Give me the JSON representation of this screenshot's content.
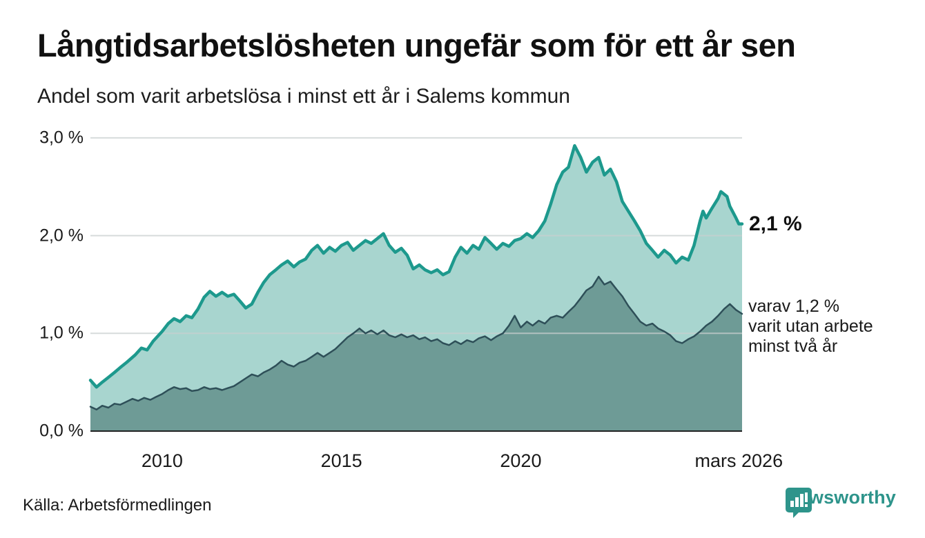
{
  "header": {
    "title": "Långtidsarbetslösheten ungefär som för ett år sen",
    "subtitle": "Andel som varit arbetslösa i minst ett år i Salems kommun"
  },
  "annotations": {
    "latest_value": "2,1 %",
    "secondary_line1": "varav 1,2 %",
    "secondary_line2": "varit utan arbete",
    "secondary_line3": "minst två år"
  },
  "footer": {
    "source": "Källa: Arbetsförmedlingen",
    "brand": "Newsworthy"
  },
  "colors": {
    "line_primary": "#1d998d",
    "fill_primary": "#a8d5cf",
    "line_secondary": "#2e4f58",
    "fill_secondary": "#6e9b96",
    "gridline": "#c9cfcf",
    "axis": "#222222",
    "brand_teal": "#2e948b",
    "text": "#111111"
  },
  "chart_data": {
    "type": "area",
    "title": "Långtidsarbetslösheten ungefär som för ett år sen",
    "subtitle": "Andel som varit arbetslösa i minst ett år i Salems kommun",
    "unit": "%",
    "grid": true,
    "x_start": 2008.0,
    "x_end": 2026.17,
    "ylim": [
      0,
      3.1
    ],
    "y_ticks": [
      {
        "v": 0,
        "label": "0,0 %"
      },
      {
        "v": 1,
        "label": "1,0 %"
      },
      {
        "v": 2,
        "label": "2,0 %"
      },
      {
        "v": 3,
        "label": "3,0 %"
      }
    ],
    "x_ticks": [
      {
        "x": 2010,
        "label": "2010"
      },
      {
        "x": 2015,
        "label": "2015"
      },
      {
        "x": 2020,
        "label": "2020"
      },
      {
        "x": 2026.08,
        "label": "mars 2026"
      }
    ],
    "latest": {
      "primary": 2.1,
      "secondary": 1.2,
      "x": 2026.17
    },
    "series": [
      {
        "name": "Andel arbetslösa minst ett år",
        "points": [
          [
            2008.0,
            0.52
          ],
          [
            2008.17,
            0.45
          ],
          [
            2008.33,
            0.5
          ],
          [
            2008.5,
            0.55
          ],
          [
            2008.67,
            0.6
          ],
          [
            2008.83,
            0.65
          ],
          [
            2009.0,
            0.7
          ],
          [
            2009.25,
            0.78
          ],
          [
            2009.42,
            0.85
          ],
          [
            2009.58,
            0.83
          ],
          [
            2009.75,
            0.92
          ],
          [
            2010.0,
            1.02
          ],
          [
            2010.17,
            1.1
          ],
          [
            2010.33,
            1.15
          ],
          [
            2010.5,
            1.12
          ],
          [
            2010.67,
            1.18
          ],
          [
            2010.83,
            1.16
          ],
          [
            2011.0,
            1.25
          ],
          [
            2011.17,
            1.37
          ],
          [
            2011.33,
            1.43
          ],
          [
            2011.5,
            1.38
          ],
          [
            2011.67,
            1.42
          ],
          [
            2011.83,
            1.38
          ],
          [
            2012.0,
            1.4
          ],
          [
            2012.17,
            1.33
          ],
          [
            2012.33,
            1.26
          ],
          [
            2012.5,
            1.3
          ],
          [
            2012.67,
            1.42
          ],
          [
            2012.83,
            1.52
          ],
          [
            2013.0,
            1.6
          ],
          [
            2013.17,
            1.65
          ],
          [
            2013.33,
            1.7
          ],
          [
            2013.5,
            1.74
          ],
          [
            2013.67,
            1.68
          ],
          [
            2013.83,
            1.73
          ],
          [
            2014.0,
            1.76
          ],
          [
            2014.17,
            1.85
          ],
          [
            2014.33,
            1.9
          ],
          [
            2014.5,
            1.82
          ],
          [
            2014.67,
            1.88
          ],
          [
            2014.83,
            1.84
          ],
          [
            2015.0,
            1.9
          ],
          [
            2015.17,
            1.93
          ],
          [
            2015.33,
            1.85
          ],
          [
            2015.5,
            1.9
          ],
          [
            2015.67,
            1.95
          ],
          [
            2015.83,
            1.92
          ],
          [
            2016.0,
            1.97
          ],
          [
            2016.17,
            2.02
          ],
          [
            2016.33,
            1.9
          ],
          [
            2016.5,
            1.83
          ],
          [
            2016.67,
            1.87
          ],
          [
            2016.83,
            1.8
          ],
          [
            2017.0,
            1.66
          ],
          [
            2017.17,
            1.7
          ],
          [
            2017.33,
            1.65
          ],
          [
            2017.5,
            1.62
          ],
          [
            2017.67,
            1.65
          ],
          [
            2017.83,
            1.6
          ],
          [
            2018.0,
            1.63
          ],
          [
            2018.17,
            1.78
          ],
          [
            2018.33,
            1.88
          ],
          [
            2018.5,
            1.82
          ],
          [
            2018.67,
            1.9
          ],
          [
            2018.83,
            1.86
          ],
          [
            2019.0,
            1.98
          ],
          [
            2019.17,
            1.92
          ],
          [
            2019.33,
            1.86
          ],
          [
            2019.5,
            1.92
          ],
          [
            2019.67,
            1.89
          ],
          [
            2019.83,
            1.95
          ],
          [
            2020.0,
            1.97
          ],
          [
            2020.17,
            2.02
          ],
          [
            2020.33,
            1.98
          ],
          [
            2020.5,
            2.05
          ],
          [
            2020.67,
            2.15
          ],
          [
            2020.83,
            2.32
          ],
          [
            2021.0,
            2.52
          ],
          [
            2021.17,
            2.65
          ],
          [
            2021.33,
            2.7
          ],
          [
            2021.5,
            2.92
          ],
          [
            2021.67,
            2.8
          ],
          [
            2021.83,
            2.65
          ],
          [
            2022.0,
            2.75
          ],
          [
            2022.17,
            2.8
          ],
          [
            2022.33,
            2.62
          ],
          [
            2022.5,
            2.68
          ],
          [
            2022.67,
            2.55
          ],
          [
            2022.83,
            2.35
          ],
          [
            2023.0,
            2.25
          ],
          [
            2023.17,
            2.15
          ],
          [
            2023.33,
            2.05
          ],
          [
            2023.5,
            1.92
          ],
          [
            2023.67,
            1.85
          ],
          [
            2023.83,
            1.78
          ],
          [
            2024.0,
            1.85
          ],
          [
            2024.17,
            1.8
          ],
          [
            2024.33,
            1.72
          ],
          [
            2024.5,
            1.78
          ],
          [
            2024.67,
            1.75
          ],
          [
            2024.83,
            1.9
          ],
          [
            2025.0,
            2.15
          ],
          [
            2025.08,
            2.25
          ],
          [
            2025.17,
            2.18
          ],
          [
            2025.33,
            2.28
          ],
          [
            2025.5,
            2.38
          ],
          [
            2025.58,
            2.45
          ],
          [
            2025.75,
            2.4
          ],
          [
            2025.83,
            2.3
          ],
          [
            2026.0,
            2.18
          ],
          [
            2026.08,
            2.12
          ],
          [
            2026.17,
            2.12
          ]
        ]
      },
      {
        "name": "varav utan arbete minst två år",
        "points": [
          [
            2008.0,
            0.25
          ],
          [
            2008.17,
            0.22
          ],
          [
            2008.33,
            0.26
          ],
          [
            2008.5,
            0.24
          ],
          [
            2008.67,
            0.28
          ],
          [
            2008.83,
            0.27
          ],
          [
            2009.0,
            0.3
          ],
          [
            2009.17,
            0.33
          ],
          [
            2009.33,
            0.31
          ],
          [
            2009.5,
            0.34
          ],
          [
            2009.67,
            0.32
          ],
          [
            2009.83,
            0.35
          ],
          [
            2010.0,
            0.38
          ],
          [
            2010.17,
            0.42
          ],
          [
            2010.33,
            0.45
          ],
          [
            2010.5,
            0.43
          ],
          [
            2010.67,
            0.44
          ],
          [
            2010.83,
            0.41
          ],
          [
            2011.0,
            0.42
          ],
          [
            2011.17,
            0.45
          ],
          [
            2011.33,
            0.43
          ],
          [
            2011.5,
            0.44
          ],
          [
            2011.67,
            0.42
          ],
          [
            2011.83,
            0.44
          ],
          [
            2012.0,
            0.46
          ],
          [
            2012.17,
            0.5
          ],
          [
            2012.33,
            0.54
          ],
          [
            2012.5,
            0.58
          ],
          [
            2012.67,
            0.56
          ],
          [
            2012.83,
            0.6
          ],
          [
            2013.0,
            0.63
          ],
          [
            2013.17,
            0.67
          ],
          [
            2013.33,
            0.72
          ],
          [
            2013.5,
            0.68
          ],
          [
            2013.67,
            0.66
          ],
          [
            2013.83,
            0.7
          ],
          [
            2014.0,
            0.72
          ],
          [
            2014.17,
            0.76
          ],
          [
            2014.33,
            0.8
          ],
          [
            2014.5,
            0.76
          ],
          [
            2014.67,
            0.8
          ],
          [
            2014.83,
            0.84
          ],
          [
            2015.0,
            0.9
          ],
          [
            2015.17,
            0.96
          ],
          [
            2015.33,
            1.0
          ],
          [
            2015.5,
            1.05
          ],
          [
            2015.67,
            1.0
          ],
          [
            2015.83,
            1.03
          ],
          [
            2016.0,
            0.99
          ],
          [
            2016.17,
            1.03
          ],
          [
            2016.33,
            0.98
          ],
          [
            2016.5,
            0.96
          ],
          [
            2016.67,
            0.99
          ],
          [
            2016.83,
            0.96
          ],
          [
            2017.0,
            0.98
          ],
          [
            2017.17,
            0.94
          ],
          [
            2017.33,
            0.96
          ],
          [
            2017.5,
            0.92
          ],
          [
            2017.67,
            0.94
          ],
          [
            2017.83,
            0.9
          ],
          [
            2018.0,
            0.88
          ],
          [
            2018.17,
            0.92
          ],
          [
            2018.33,
            0.89
          ],
          [
            2018.5,
            0.93
          ],
          [
            2018.67,
            0.91
          ],
          [
            2018.83,
            0.95
          ],
          [
            2019.0,
            0.97
          ],
          [
            2019.17,
            0.93
          ],
          [
            2019.33,
            0.97
          ],
          [
            2019.5,
            1.0
          ],
          [
            2019.67,
            1.08
          ],
          [
            2019.83,
            1.18
          ],
          [
            2020.0,
            1.06
          ],
          [
            2020.17,
            1.12
          ],
          [
            2020.33,
            1.08
          ],
          [
            2020.5,
            1.13
          ],
          [
            2020.67,
            1.1
          ],
          [
            2020.83,
            1.16
          ],
          [
            2021.0,
            1.18
          ],
          [
            2021.17,
            1.16
          ],
          [
            2021.33,
            1.22
          ],
          [
            2021.5,
            1.28
          ],
          [
            2021.67,
            1.36
          ],
          [
            2021.83,
            1.44
          ],
          [
            2022.0,
            1.48
          ],
          [
            2022.17,
            1.58
          ],
          [
            2022.33,
            1.5
          ],
          [
            2022.5,
            1.53
          ],
          [
            2022.67,
            1.45
          ],
          [
            2022.83,
            1.38
          ],
          [
            2023.0,
            1.28
          ],
          [
            2023.17,
            1.2
          ],
          [
            2023.33,
            1.12
          ],
          [
            2023.5,
            1.08
          ],
          [
            2023.67,
            1.1
          ],
          [
            2023.83,
            1.05
          ],
          [
            2024.0,
            1.02
          ],
          [
            2024.17,
            0.98
          ],
          [
            2024.33,
            0.92
          ],
          [
            2024.5,
            0.9
          ],
          [
            2024.67,
            0.94
          ],
          [
            2024.83,
            0.97
          ],
          [
            2025.0,
            1.02
          ],
          [
            2025.17,
            1.08
          ],
          [
            2025.33,
            1.12
          ],
          [
            2025.5,
            1.18
          ],
          [
            2025.67,
            1.25
          ],
          [
            2025.83,
            1.3
          ],
          [
            2026.0,
            1.24
          ],
          [
            2026.17,
            1.2
          ]
        ]
      }
    ]
  }
}
